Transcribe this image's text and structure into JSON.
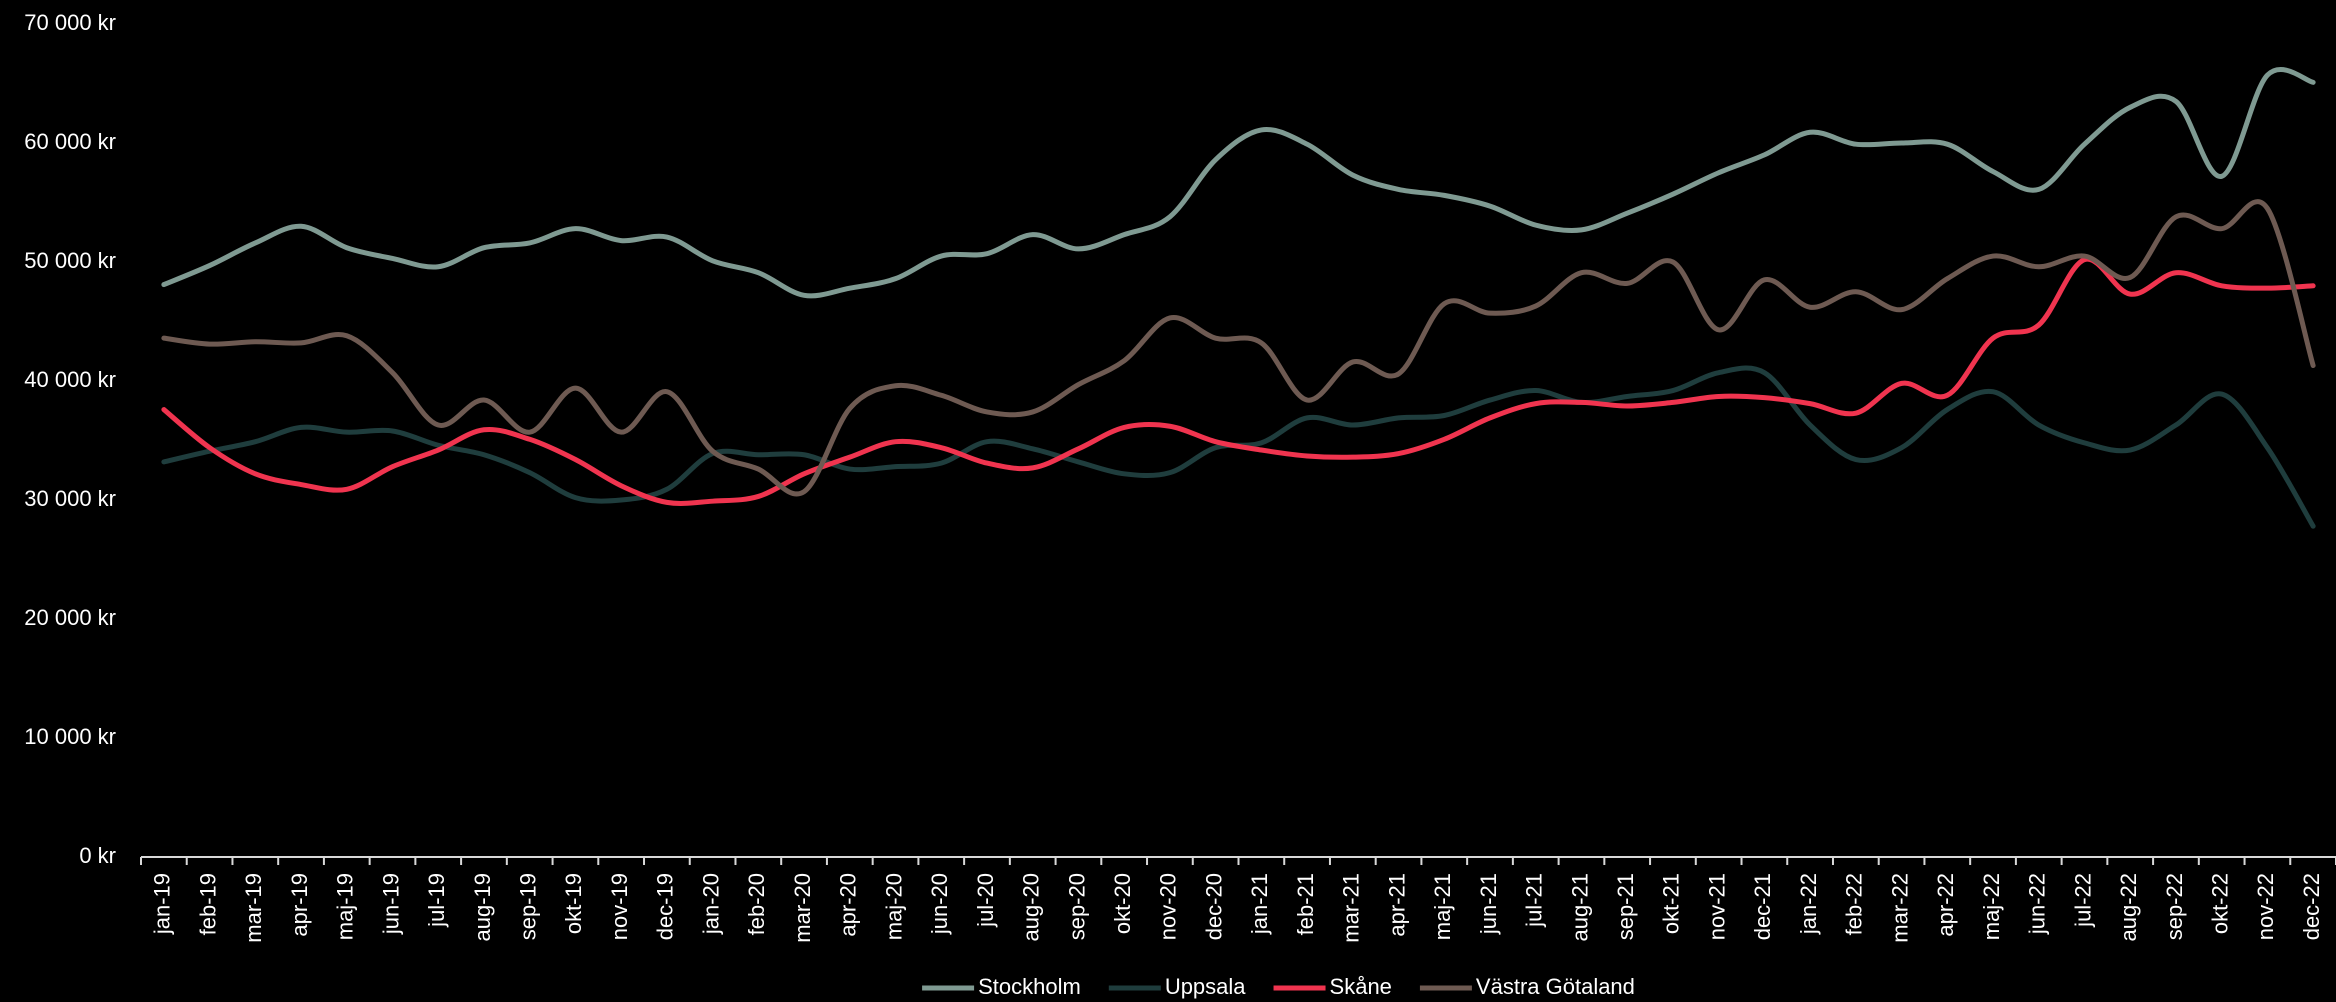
{
  "chart_data": {
    "type": "line",
    "categories": [
      "jan-19",
      "feb-19",
      "mar-19",
      "apr-19",
      "maj-19",
      "jun-19",
      "jul-19",
      "aug-19",
      "sep-19",
      "okt-19",
      "nov-19",
      "dec-19",
      "jan-20",
      "feb-20",
      "mar-20",
      "apr-20",
      "maj-20",
      "jun-20",
      "jul-20",
      "aug-20",
      "sep-20",
      "okt-20",
      "nov-20",
      "dec-20",
      "jan-21",
      "feb-21",
      "mar-21",
      "apr-21",
      "maj-21",
      "jun-21",
      "jul-21",
      "aug-21",
      "sep-21",
      "okt-21",
      "nov-21",
      "dec-21",
      "jan-22",
      "feb-22",
      "mar-22",
      "apr-22",
      "maj-22",
      "jun-22",
      "jul-22",
      "aug-22",
      "sep-22",
      "okt-22",
      "nov-22",
      "dec-22"
    ],
    "series": [
      {
        "name": "Stockholm",
        "color": "#7f9a92",
        "values": [
          48100,
          49700,
          51600,
          53000,
          51200,
          50300,
          49600,
          51200,
          51600,
          52800,
          51800,
          52100,
          50100,
          49100,
          47200,
          47800,
          48600,
          50500,
          50700,
          52300,
          51100,
          52300,
          53800,
          58600,
          61100,
          59900,
          57300,
          56100,
          55600,
          54700,
          53100,
          52700,
          54100,
          55700,
          57500,
          59000,
          60900,
          59900,
          60000,
          59900,
          57600,
          56100,
          59900,
          63000,
          63500,
          57200,
          65700,
          65100
        ]
      },
      {
        "name": "Uppsala",
        "color": "#1f3d3d",
        "values": [
          33200,
          34100,
          34900,
          36100,
          35700,
          35800,
          34600,
          33800,
          32300,
          30200,
          30000,
          30900,
          33900,
          33800,
          33800,
          32600,
          32800,
          33100,
          34900,
          34300,
          33200,
          32200,
          32300,
          34400,
          34800,
          36900,
          36300,
          36900,
          37100,
          38400,
          39200,
          38200,
          38700,
          39200,
          40700,
          40700,
          36300,
          33400,
          34400,
          37600,
          39100,
          36300,
          34800,
          34200,
          36300,
          38900,
          34400,
          27800
        ]
      },
      {
        "name": "Skåne",
        "color": "#f0344f",
        "values": [
          37600,
          34400,
          32200,
          31300,
          30900,
          32800,
          34200,
          35900,
          35100,
          33400,
          31200,
          29800,
          29900,
          30300,
          32200,
          33600,
          34900,
          34400,
          33100,
          32700,
          34300,
          36100,
          36200,
          34900,
          34200,
          33700,
          33600,
          33900,
          35100,
          36900,
          38100,
          38200,
          37900,
          38200,
          38700,
          38600,
          38100,
          37300,
          39800,
          38800,
          43600,
          44700,
          50200,
          47300,
          49100,
          48000,
          47800,
          48000
        ]
      },
      {
        "name": "Västra Götaland",
        "color": "#6e5a52",
        "values": [
          43600,
          43100,
          43300,
          43200,
          43800,
          40700,
          36300,
          38400,
          35700,
          39400,
          35700,
          39100,
          34100,
          32600,
          30700,
          37700,
          39600,
          38800,
          37400,
          37400,
          39700,
          41700,
          45300,
          43600,
          43200,
          38400,
          41600,
          40600,
          46500,
          45700,
          46300,
          49100,
          48200,
          50000,
          44300,
          48500,
          46200,
          47500,
          46000,
          48600,
          50500,
          49600,
          50500,
          48700,
          53800,
          52800,
          54500,
          41300
        ]
      }
    ],
    "ylim": [
      0,
      70000
    ],
    "yticks": [
      {
        "value": 0,
        "label": "0 kr"
      },
      {
        "value": 10000,
        "label": "10 000 kr"
      },
      {
        "value": 20000,
        "label": "20 000 kr"
      },
      {
        "value": 30000,
        "label": "30 000 kr"
      },
      {
        "value": 40000,
        "label": "40 000 kr"
      },
      {
        "value": 50000,
        "label": "50 000 kr"
      },
      {
        "value": 60000,
        "label": "60 000 kr"
      },
      {
        "value": 70000,
        "label": "70 000 kr"
      }
    ],
    "legend": "bottom"
  }
}
